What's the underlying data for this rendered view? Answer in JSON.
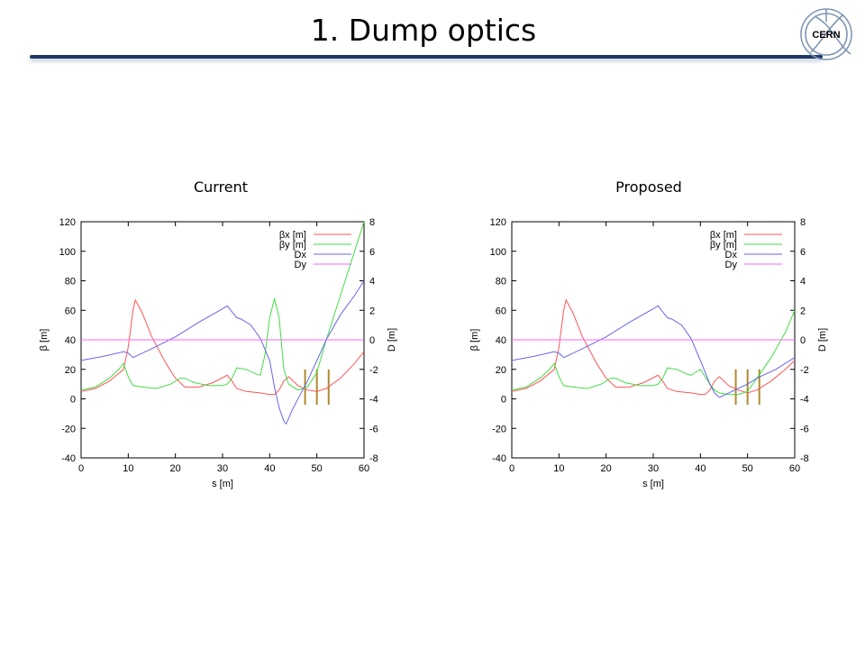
{
  "slide": {
    "title": "1. Dump optics"
  },
  "logo": {
    "text": "CERN"
  },
  "colors": {
    "beta_x": "#ff5555",
    "beta_y": "#44dd44",
    "D_x": "#6666ee",
    "D_y": "#ff66ff",
    "kicker": "#b08a30",
    "title_rule": "#1f3864"
  },
  "chart_data": [
    {
      "type": "line",
      "panel_label": "Current",
      "xlabel": "s [m]",
      "ylabel": "β [m]",
      "y2label": "D [m]",
      "xlim": [
        0,
        60
      ],
      "ylim": [
        -40,
        120
      ],
      "y2lim": [
        -8,
        8
      ],
      "xticks": [
        0,
        10,
        20,
        30,
        40,
        50,
        60
      ],
      "yticks": [
        -40,
        -20,
        0,
        20,
        40,
        60,
        80,
        100,
        120
      ],
      "y2ticks": [
        -8,
        -6,
        -4,
        -2,
        0,
        2,
        4,
        6,
        8
      ],
      "legend_position": "top-right",
      "series": [
        {
          "name": "βx [m]",
          "axis": "left",
          "color_key": "beta_x",
          "x": [
            0,
            3,
            6,
            9,
            10,
            11,
            11.5,
            13,
            15,
            18,
            20,
            22,
            25,
            28,
            31,
            32,
            33,
            35,
            38,
            40,
            41,
            42,
            43,
            44,
            45,
            46,
            48,
            50,
            52,
            55,
            58,
            60
          ],
          "y": [
            5,
            7,
            12,
            20,
            35,
            60,
            67,
            58,
            42,
            24,
            14,
            8,
            8,
            11,
            16,
            12,
            7,
            5,
            4,
            3,
            3,
            6,
            12,
            15,
            12,
            9,
            6,
            5,
            7,
            14,
            24,
            32
          ]
        },
        {
          "name": "βy [m]",
          "axis": "left",
          "color_key": "beta_y",
          "x": [
            0,
            3,
            6,
            8,
            9,
            10,
            11,
            13,
            16,
            19,
            21,
            22,
            24,
            27,
            30,
            31,
            32,
            33,
            35,
            37,
            38,
            39,
            40,
            41,
            42,
            43,
            44,
            45,
            46,
            48,
            50,
            52,
            55,
            58,
            60
          ],
          "y": [
            6,
            8,
            14,
            20,
            24,
            15,
            9,
            8,
            7,
            10,
            14,
            14,
            11,
            9,
            9,
            10,
            14,
            21,
            20,
            17,
            16,
            30,
            55,
            68,
            55,
            20,
            10,
            8,
            6,
            8,
            18,
            40,
            70,
            100,
            120
          ]
        },
        {
          "name": "Dx",
          "axis": "right",
          "color_key": "D_x",
          "x": [
            0,
            5,
            9,
            10,
            11,
            15,
            20,
            25,
            30,
            31,
            32,
            33,
            34,
            36,
            38,
            40,
            41,
            42,
            43,
            43.5,
            45,
            48,
            50,
            52,
            55,
            58,
            60
          ],
          "y": [
            -1.4,
            -1.1,
            -0.8,
            -0.9,
            -1.2,
            -0.6,
            0.2,
            1.2,
            2.1,
            2.3,
            1.9,
            1.5,
            1.4,
            1.0,
            0.1,
            -1.4,
            -3.2,
            -4.6,
            -5.5,
            -5.7,
            -4.6,
            -2.8,
            -1.4,
            0.0,
            1.7,
            3.0,
            4.0
          ]
        },
        {
          "name": "Dy",
          "axis": "right",
          "color_key": "D_y",
          "x": [
            0,
            60
          ],
          "y": [
            0,
            0
          ]
        }
      ],
      "markers": {
        "color_key": "kicker",
        "x": [
          47.5,
          50,
          52.5
        ],
        "y_range": [
          -4,
          20
        ]
      }
    },
    {
      "type": "line",
      "panel_label": "Proposed",
      "xlabel": "s [m]",
      "ylabel": "β [m]",
      "y2label": "D [m]",
      "xlim": [
        0,
        60
      ],
      "ylim": [
        -40,
        120
      ],
      "y2lim": [
        -8,
        8
      ],
      "xticks": [
        0,
        10,
        20,
        30,
        40,
        50,
        60
      ],
      "yticks": [
        -40,
        -20,
        0,
        20,
        40,
        60,
        80,
        100,
        120
      ],
      "y2ticks": [
        -8,
        -6,
        -4,
        -2,
        0,
        2,
        4,
        6,
        8
      ],
      "legend_position": "top-right",
      "series": [
        {
          "name": "βx [m]",
          "axis": "left",
          "color_key": "beta_x",
          "x": [
            0,
            3,
            6,
            9,
            10,
            11,
            11.5,
            13,
            15,
            18,
            20,
            22,
            25,
            28,
            31,
            32,
            33,
            35,
            38,
            40,
            41,
            42,
            43,
            44,
            45,
            46,
            48,
            50,
            52,
            55,
            58,
            60
          ],
          "y": [
            5,
            7,
            12,
            20,
            35,
            60,
            67,
            58,
            42,
            24,
            14,
            8,
            8,
            11,
            16,
            12,
            7,
            5,
            4,
            3,
            3,
            6,
            12,
            15,
            12,
            9,
            6,
            4,
            6,
            12,
            20,
            26
          ]
        },
        {
          "name": "βy [m]",
          "axis": "left",
          "color_key": "beta_y",
          "x": [
            0,
            3,
            6,
            8,
            9,
            10,
            11,
            13,
            16,
            19,
            21,
            22,
            24,
            27,
            30,
            31,
            32,
            33,
            35,
            37,
            38,
            39,
            40,
            41,
            42,
            43,
            44,
            46,
            48,
            50,
            52,
            55,
            58,
            60
          ],
          "y": [
            6,
            8,
            14,
            20,
            24,
            15,
            9,
            8,
            7,
            10,
            14,
            14,
            11,
            9,
            9,
            10,
            14,
            21,
            20,
            17,
            16,
            18,
            20,
            15,
            10,
            6,
            4,
            3,
            3,
            5,
            14,
            28,
            45,
            60
          ]
        },
        {
          "name": "Dx",
          "axis": "right",
          "color_key": "D_x",
          "x": [
            0,
            5,
            9,
            10,
            11,
            15,
            20,
            25,
            30,
            31,
            32,
            33,
            34,
            36,
            38,
            40,
            41,
            42,
            43,
            44,
            46,
            48,
            50,
            52,
            54,
            56,
            58,
            60
          ],
          "y": [
            -1.4,
            -1.1,
            -0.8,
            -0.9,
            -1.2,
            -0.6,
            0.2,
            1.2,
            2.1,
            2.3,
            1.9,
            1.5,
            1.4,
            1.0,
            0.1,
            -1.4,
            -2.2,
            -3.0,
            -3.6,
            -3.9,
            -3.6,
            -3.3,
            -3.0,
            -2.6,
            -2.3,
            -2.0,
            -1.6,
            -1.2
          ]
        },
        {
          "name": "Dy",
          "axis": "right",
          "color_key": "D_y",
          "x": [
            0,
            60
          ],
          "y": [
            0,
            0
          ]
        }
      ],
      "markers": {
        "color_key": "kicker",
        "x": [
          47.5,
          50,
          52.5
        ],
        "y_range": [
          -4,
          20
        ]
      }
    }
  ]
}
